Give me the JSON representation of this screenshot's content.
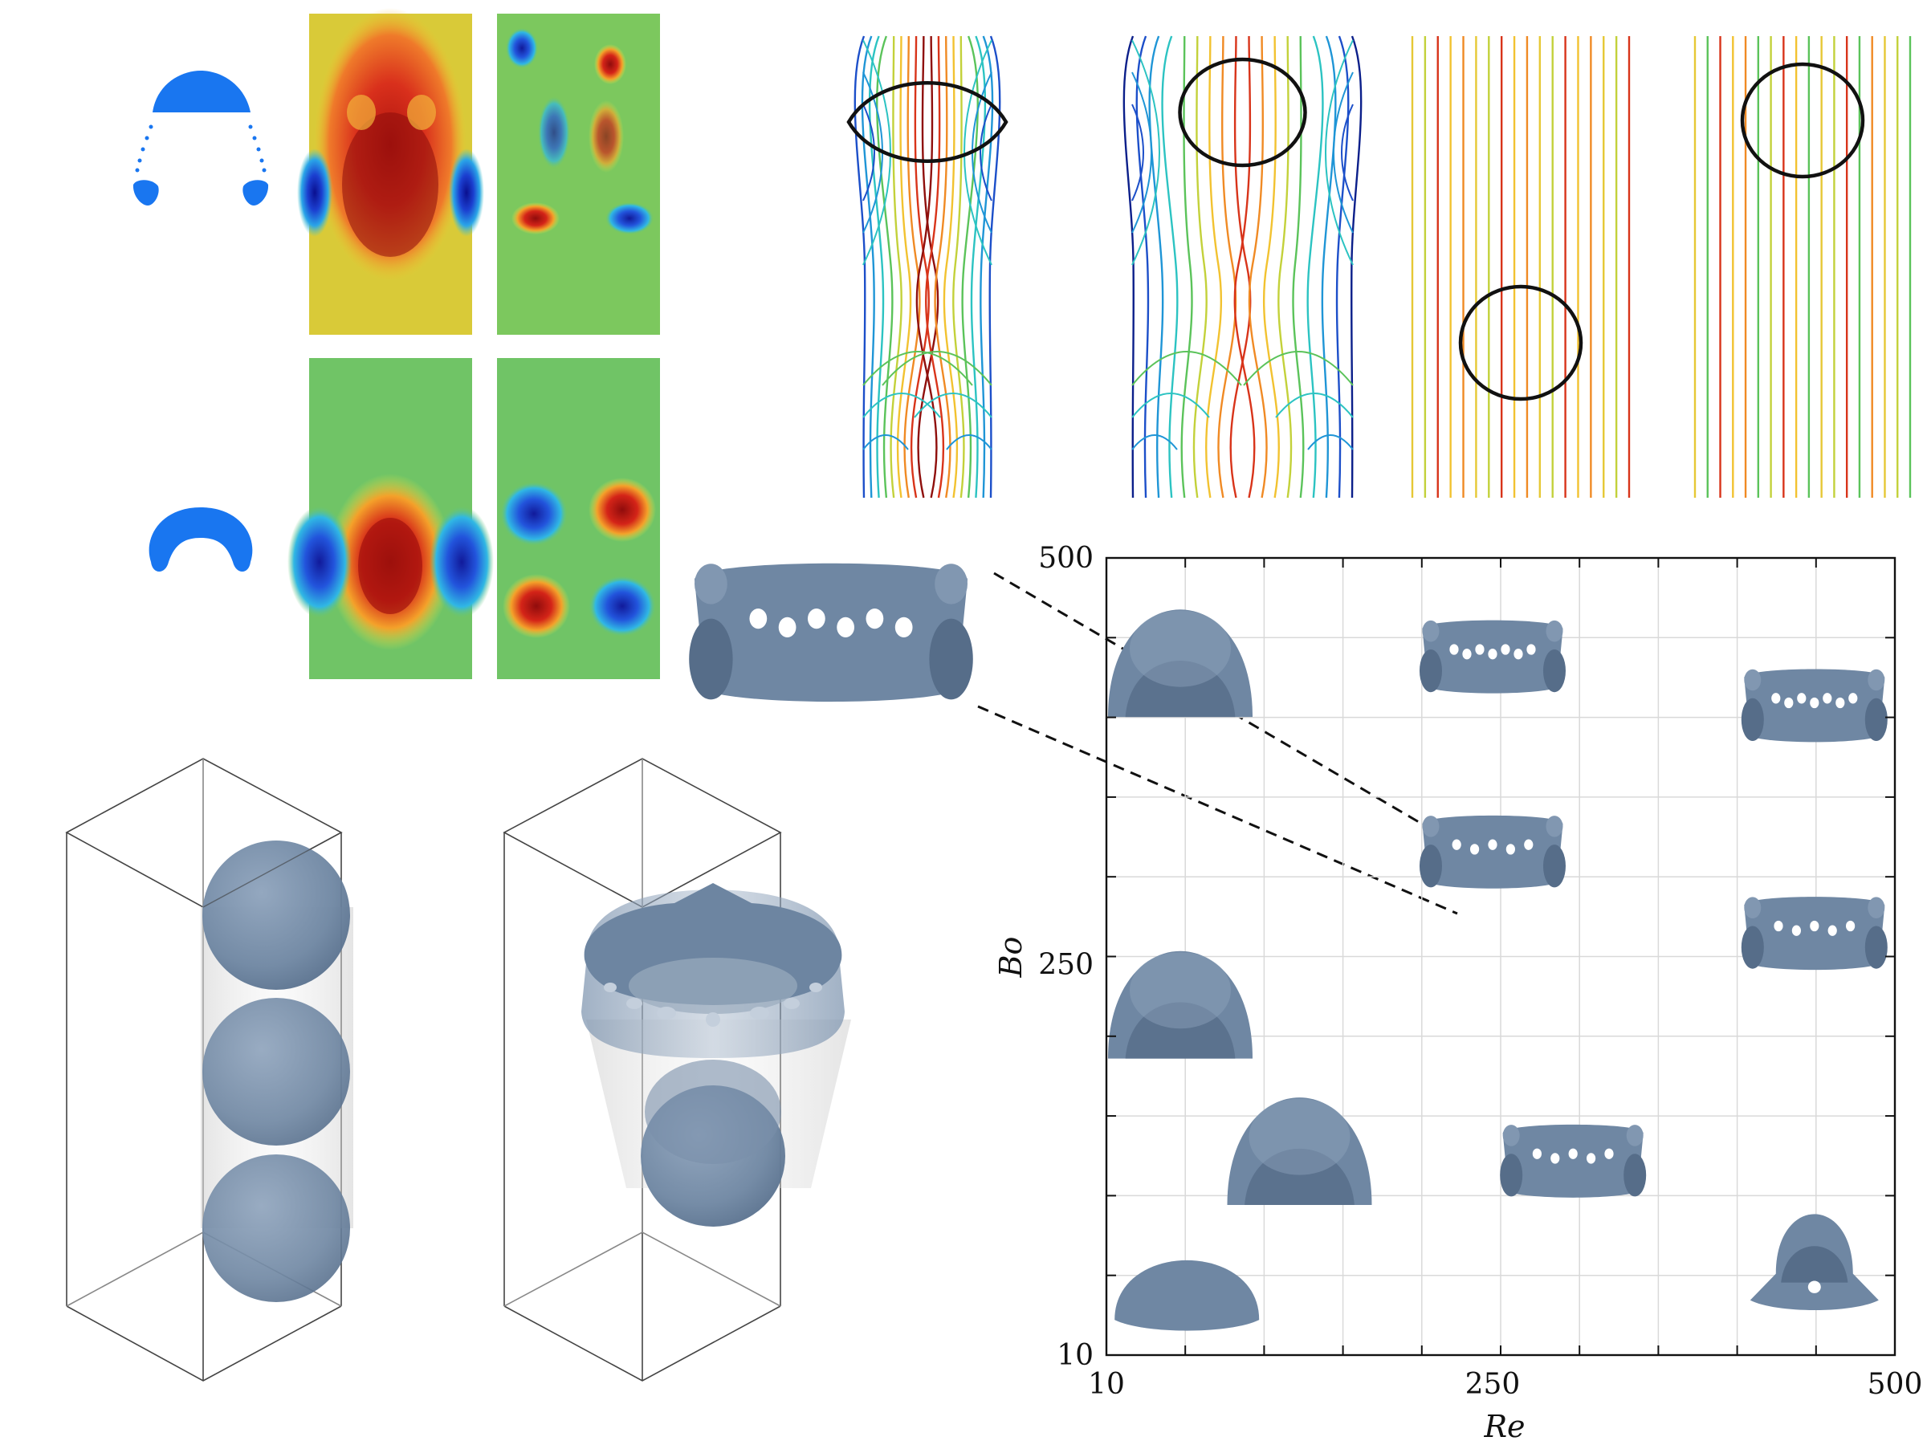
{
  "chart_data": {
    "type": "scatter",
    "xlabel": "Re",
    "ylabel": "Bo",
    "x_ticks": [
      "10",
      "250",
      "500"
    ],
    "y_ticks": [
      "10",
      "250",
      "500"
    ],
    "xlim": [
      10,
      500
    ],
    "ylim": [
      10,
      500
    ],
    "grid": true,
    "points": [
      {
        "re": 10,
        "bo": 440,
        "shape": "dome"
      },
      {
        "re": 10,
        "bo": 230,
        "shape": "dome"
      },
      {
        "re": 130,
        "bo": 140,
        "shape": "dome"
      },
      {
        "re": 60,
        "bo": 45,
        "shape": "cap"
      },
      {
        "re": 250,
        "bo": 440,
        "shape": "perforated-ring"
      },
      {
        "re": 250,
        "bo": 320,
        "shape": "perforated-ring"
      },
      {
        "re": 450,
        "bo": 410,
        "shape": "perforated-ring"
      },
      {
        "re": 450,
        "bo": 270,
        "shape": "perforated-ring"
      },
      {
        "re": 300,
        "bo": 130,
        "shape": "perforated-ring"
      },
      {
        "re": 450,
        "bo": 60,
        "shape": "skirt"
      }
    ]
  },
  "colors": {
    "bubble": "#6f87a3",
    "bubble_dark": "#566d89",
    "interface": "#111111",
    "drop_2d": "#1976f0",
    "grid": "#d9d9d9",
    "box_edge": "#444444"
  },
  "icons": [
    "bubble-shape",
    "streamline-field",
    "contour-map",
    "isometric-box"
  ]
}
